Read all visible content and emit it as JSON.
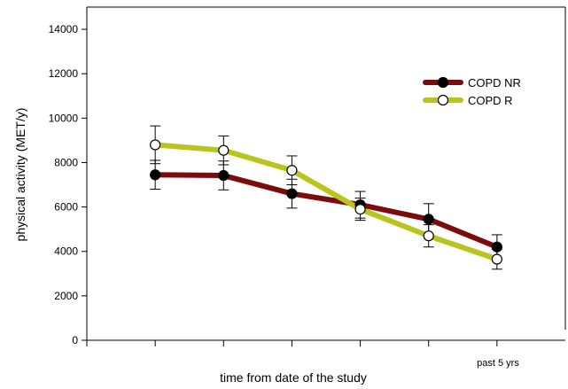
{
  "chart_data": {
    "type": "line",
    "title": "",
    "xlabel": "time from date of the study",
    "ylabel": "physical activity (MET/y)",
    "ylim": [
      0,
      15000
    ],
    "yticks": [
      0,
      2000,
      4000,
      6000,
      8000,
      10000,
      12000,
      14000
    ],
    "x": [
      1,
      2,
      3,
      4,
      5,
      6
    ],
    "xlim": [
      0,
      7
    ],
    "x_annotation": "past 5 yrs",
    "grid": false,
    "legend_position": "top-right",
    "series": [
      {
        "name": "COPD NR",
        "color": "#7b0c0c",
        "marker": "filled-circle",
        "values": [
          7450,
          7420,
          6600,
          6100,
          5450,
          4200
        ],
        "error": [
          650,
          650,
          650,
          600,
          700,
          550
        ]
      },
      {
        "name": "COPD R",
        "color": "#b9c41c",
        "marker": "open-circle",
        "values": [
          8800,
          8550,
          7650,
          5900,
          4700,
          3650
        ],
        "error": [
          850,
          650,
          650,
          500,
          500,
          450
        ]
      }
    ]
  }
}
